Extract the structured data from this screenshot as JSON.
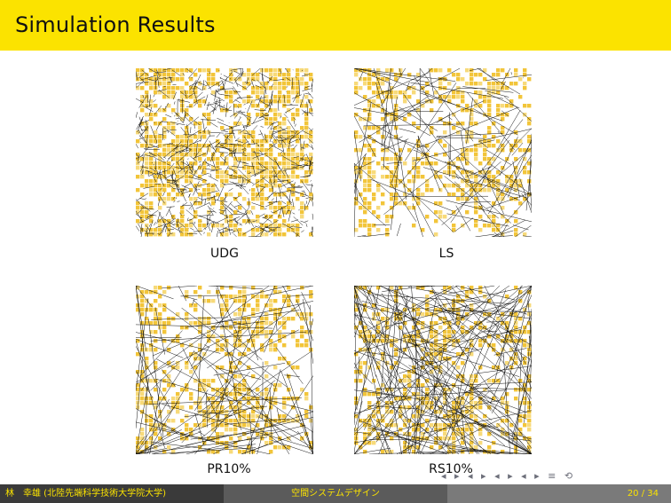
{
  "slide": {
    "title": "Simulation Results"
  },
  "panels": [
    {
      "caption": "UDG",
      "density": "high"
    },
    {
      "caption": "LS",
      "density": "low"
    },
    {
      "caption": "PR10%",
      "density": "medium"
    },
    {
      "caption": "RS10%",
      "density": "mediumhigh"
    }
  ],
  "navigation": {
    "symbols": "◂ ▸ ◂ ▸ ◂ ▸ ◂ ▸ ≡ ⟲"
  },
  "footer": {
    "author": "林　幸雄 (北陸先端科学技術大学院大学)",
    "talk_title": "空間システムデザイン",
    "page": "20 / 34"
  },
  "colors": {
    "header": "#fbe300",
    "plot_fill": "#f2c53a",
    "plot_fill_light": "#f7da7a",
    "footer_dark": "#3a3a3a",
    "footer_mid": "#5b5b5b",
    "footer_light": "#7a7a7a"
  }
}
